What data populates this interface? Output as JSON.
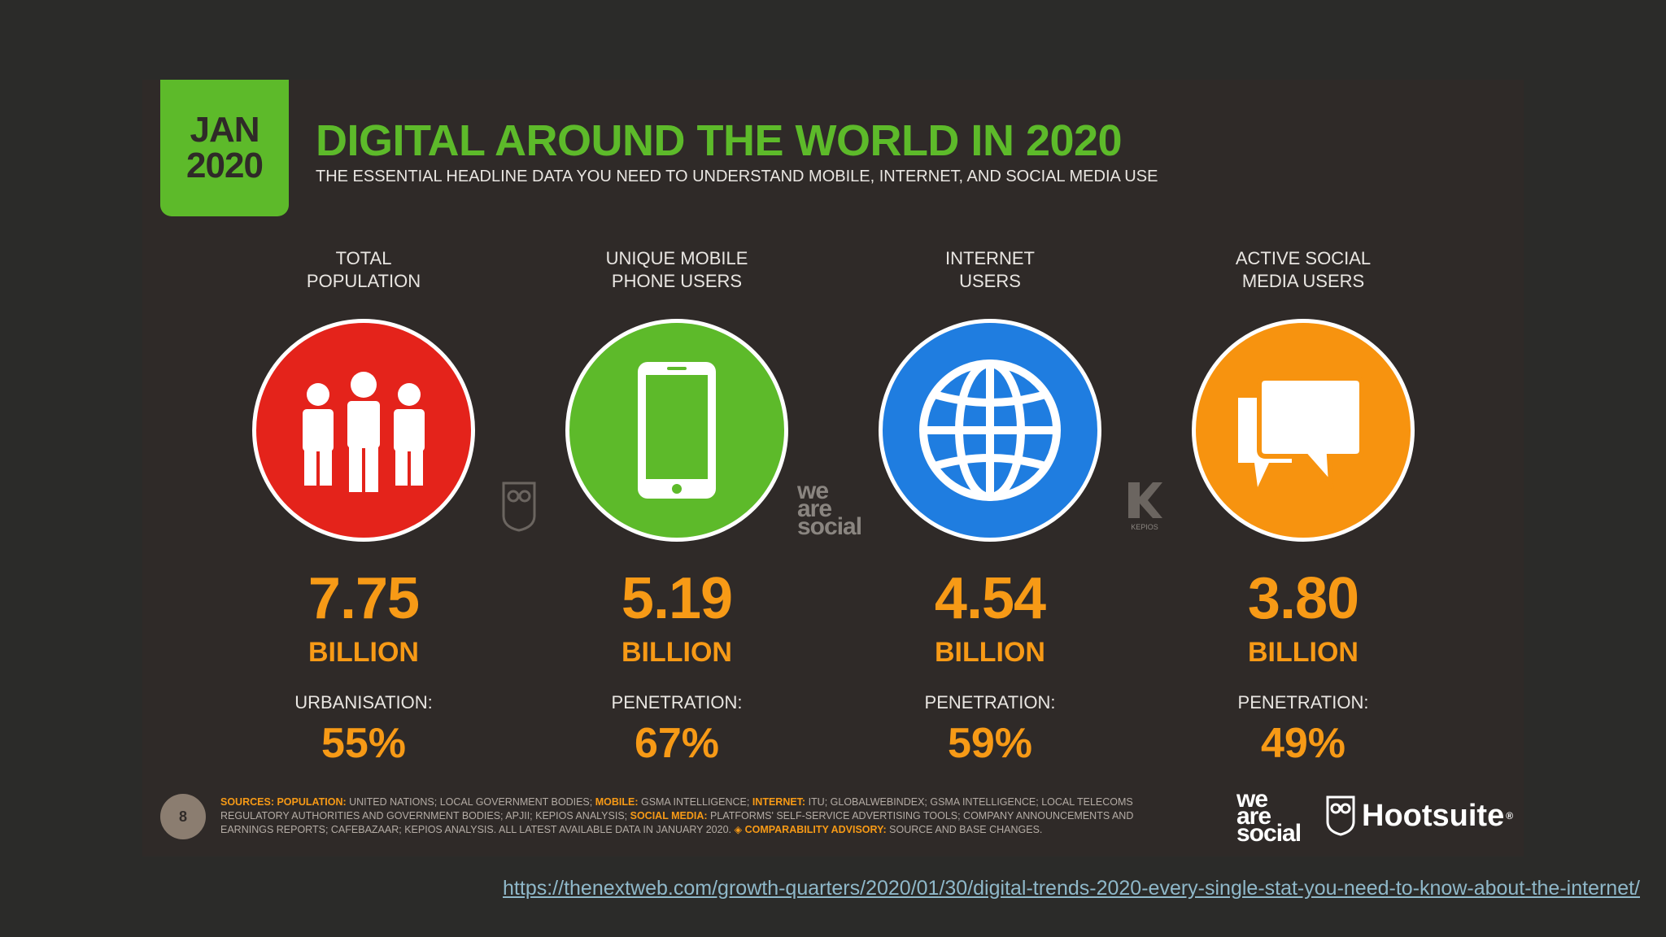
{
  "badge": {
    "month": "JAN",
    "year": "2020"
  },
  "title": "DIGITAL AROUND THE WORLD IN 2020",
  "subtitle": "THE ESSENTIAL HEADLINE DATA YOU NEED TO UNDERSTAND MOBILE, INTERNET, AND SOCIAL MEDIA USE",
  "stats": [
    {
      "label_line1": "TOTAL",
      "label_line2": "POPULATION",
      "value": "7.75",
      "unit": "BILLION",
      "sublabel": "URBANISATION:",
      "subvalue": "55%",
      "color": "#e4231b",
      "icon": "people-icon"
    },
    {
      "label_line1": "UNIQUE MOBILE",
      "label_line2": "PHONE USERS",
      "value": "5.19",
      "unit": "BILLION",
      "sublabel": "PENETRATION:",
      "subvalue": "67%",
      "color": "#5dba2a",
      "icon": "mobile-phone-icon"
    },
    {
      "label_line1": "INTERNET",
      "label_line2": "USERS",
      "value": "4.54",
      "unit": "BILLION",
      "sublabel": "PENETRATION:",
      "subvalue": "59%",
      "color": "#1f7de0",
      "icon": "globe-icon"
    },
    {
      "label_line1": "ACTIVE SOCIAL",
      "label_line2": "MEDIA USERS",
      "value": "3.80",
      "unit": "BILLION",
      "sublabel": "PENETRATION:",
      "subvalue": "49%",
      "color": "#f7930f",
      "icon": "speech-bubbles-icon"
    }
  ],
  "watermarks": {
    "we_are_social": [
      "we",
      "are",
      "social"
    ],
    "kepios": "KEPIOS"
  },
  "footer": {
    "page_number": "8",
    "sources": [
      {
        "hl": "SOURCES: POPULATION: ",
        "text": "UNITED NATIONS; LOCAL GOVERNMENT BODIES; "
      },
      {
        "hl": "MOBILE: ",
        "text": "GSMA INTELLIGENCE; "
      },
      {
        "hl": "INTERNET: ",
        "text": "ITU; GLOBALWEBINDEX; GSMA INTELLIGENCE; LOCAL TELECOMS REGULATORY AUTHORITIES AND GOVERNMENT BODIES; APJII; KEPIOS ANALYSIS; "
      },
      {
        "hl": "SOCIAL MEDIA: ",
        "text": "PLATFORMS' SELF-SERVICE ADVERTISING TOOLS; COMPANY ANNOUNCEMENTS AND EARNINGS REPORTS; CAFEBAZAAR; KEPIOS ANALYSIS. ALL LATEST AVAILABLE DATA IN JANUARY 2020. "
      },
      {
        "hl": "◈ COMPARABILITY ADVISORY: ",
        "text": "SOURCE AND BASE CHANGES."
      }
    ],
    "we_are_social": [
      "we",
      "are",
      "social"
    ],
    "hootsuite": "Hootsuite",
    "hootsuite_mark": "®"
  },
  "link": "https://thenextweb.com/growth-quarters/2020/01/30/digital-trends-2020-every-single-stat-you-need-to-know-about-the-internet/"
}
